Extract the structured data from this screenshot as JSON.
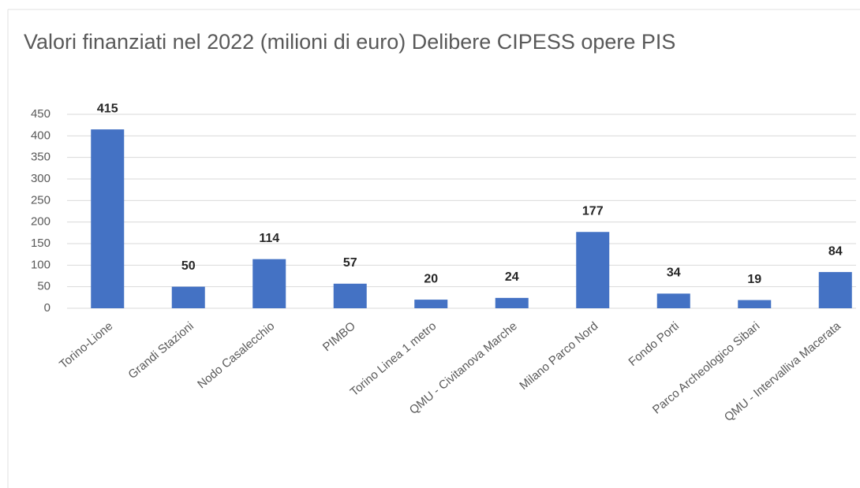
{
  "chart_data": {
    "type": "bar",
    "title": "Valori finanziati nel 2022 (milioni di euro) Delibere CIPESS opere PIS",
    "categories": [
      "Torino-Lione",
      "Grandi Stazioni",
      "Nodo Casalecchio",
      "PIMBO",
      "Torino Linea 1 metro",
      "QMU - Civitanova Marche",
      "Milano Parco Nord",
      "Fondo Porti",
      "Parco Archeologico Sibari",
      "QMU - Intervalliva Macerata"
    ],
    "values": [
      415,
      50,
      114,
      57,
      20,
      24,
      177,
      34,
      19,
      84
    ],
    "color": "#4472c4",
    "ylim": [
      0,
      450
    ],
    "yticks": [
      0,
      50,
      100,
      150,
      200,
      250,
      300,
      350,
      400,
      450
    ],
    "grid": true
  }
}
